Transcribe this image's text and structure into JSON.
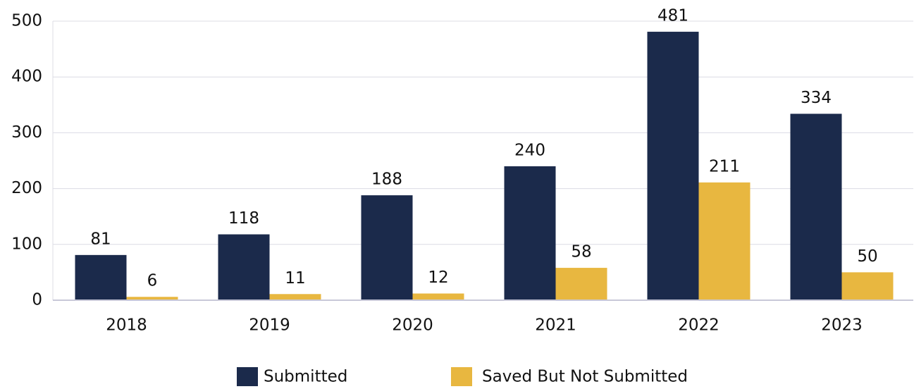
{
  "chart_data": {
    "type": "bar",
    "categories": [
      "2018",
      "2019",
      "2020",
      "2021",
      "2022",
      "2023"
    ],
    "series": [
      {
        "name": "Submitted",
        "color": "#1b2a4b",
        "values": [
          81,
          118,
          188,
          240,
          481,
          334
        ]
      },
      {
        "name": "Saved But Not Submitted",
        "color": "#e8b740",
        "values": [
          6,
          11,
          12,
          58,
          211,
          50
        ]
      }
    ],
    "ylim": [
      0,
      500
    ],
    "yticks": [
      0,
      100,
      200,
      300,
      400,
      500
    ],
    "grid": true,
    "legend": "bottom"
  }
}
